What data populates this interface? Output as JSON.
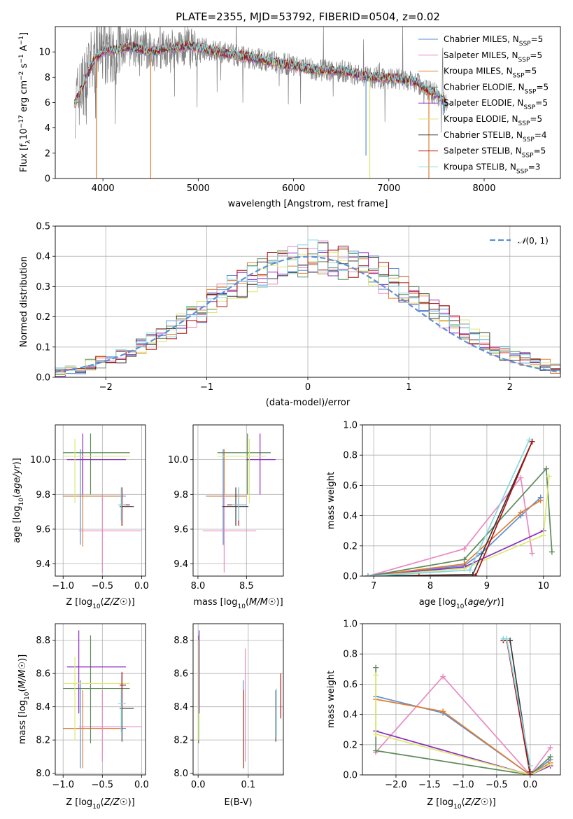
{
  "colors": {
    "chabrier_miles": "#5b8fd6",
    "salpeter_miles": "#e88ac0",
    "kroupa_miles": "#e27d2e",
    "chabrier_elodie": "#5e8a5a",
    "salpeter_elodie": "#8e2bc4",
    "kroupa_elodie": "#dcea72",
    "chabrier_stelib": "#3a3a3a",
    "salpeter_stelib": "#b01010",
    "kroupa_stelib": "#86d8e0",
    "data": "#808080",
    "normal": "#5b8fd6",
    "grid": "#b0b0b0"
  },
  "chart_data": [
    {
      "type": "line",
      "title": "PLATE=2355, MJD=53792, FIBERID=0504, z=0.02",
      "xlabel": "wavelength [Angstrom, rest frame]",
      "ylabel": "Flux [fλ10⁻¹⁷ erg cm⁻² s⁻¹ A⁻¹]",
      "xlim": [
        3500,
        8800
      ],
      "ylim": [
        0,
        12
      ],
      "xticks": [
        "4000",
        "5000",
        "6000",
        "7000",
        "8000"
      ],
      "yticks": [
        "0",
        "2",
        "4",
        "6",
        "8",
        "10"
      ],
      "legend_position": "right",
      "legend": [
        "Chabrier MILES, N_SSP=5",
        "Salpeter MILES, N_SSP=5",
        "Kroupa MILES, N_SSP=5",
        "Chabrier ELODIE, N_SSP=5",
        "Salpeter ELODIE, N_SSP=5",
        "Kroupa ELODIE, N_SSP=5",
        "Chabrier STELIB, N_SSP=4",
        "Salpeter STELIB, N_SSP=5",
        "Kroupa STELIB, N_SSP=3"
      ],
      "model_continuum": {
        "x": [
          3700,
          3800,
          3900,
          4000,
          4100,
          4300,
          4500,
          4700,
          4900,
          5200,
          5500,
          5800,
          6200,
          6500,
          6800,
          7100,
          7300,
          7400,
          7500,
          7600
        ],
        "y": [
          5.8,
          7.5,
          9.3,
          10.1,
          10.1,
          10.4,
          10.0,
          10.3,
          10.5,
          10.0,
          9.6,
          9.2,
          8.6,
          8.5,
          8.0,
          7.9,
          7.6,
          6.9,
          6.7,
          5.9
        ]
      },
      "model_dips": [
        {
          "x": 3930,
          "y": 0,
          "series": "kroupa_miles"
        },
        {
          "x": 4500,
          "y": 0,
          "series": "kroupa_miles"
        },
        {
          "x": 6760,
          "y": 1.8,
          "series": "chabrier_miles"
        },
        {
          "x": 6800,
          "y": 0,
          "series": "kroupa_elodie"
        },
        {
          "x": 7420,
          "y": 0,
          "series": "kroupa_miles"
        },
        {
          "x": 7570,
          "y": 5.0,
          "series": "chabrier_miles"
        }
      ]
    },
    {
      "type": "bar",
      "xlabel": "(data-model)/error",
      "ylabel": "Normed distribution",
      "xlim": [
        -2.5,
        2.5
      ],
      "ylim": [
        0,
        0.5
      ],
      "xticks": [
        "−2",
        "−1",
        "0",
        "1",
        "2"
      ],
      "yticks": [
        "0.0",
        "0.1",
        "0.2",
        "0.3",
        "0.4",
        "0.5"
      ],
      "legend": [
        "𝒩(0, 1)"
      ],
      "legend_position": "top-right",
      "bin_edges_start": -2.5,
      "bin_width": 0.1,
      "envelope": [
        0.02,
        0.025,
        0.03,
        0.04,
        0.05,
        0.06,
        0.07,
        0.08,
        0.1,
        0.12,
        0.14,
        0.16,
        0.18,
        0.2,
        0.22,
        0.25,
        0.27,
        0.29,
        0.31,
        0.33,
        0.35,
        0.36,
        0.37,
        0.38,
        0.39,
        0.4,
        0.4,
        0.39,
        0.38,
        0.37,
        0.36,
        0.35,
        0.33,
        0.31,
        0.29,
        0.27,
        0.25,
        0.22,
        0.2,
        0.18,
        0.16,
        0.14,
        0.12,
        0.1,
        0.08,
        0.07,
        0.06,
        0.05,
        0.04,
        0.03
      ]
    },
    {
      "type": "scatter",
      "xlabel": "Z [log₁₀(Z/Z☉)]",
      "ylabel": "age  [log₁₀(age/yr)]",
      "xlim": [
        -1.1,
        0.05
      ],
      "ylim": [
        9.33,
        10.2
      ],
      "xticks": [
        "−1.0",
        "−0.5",
        "0.0"
      ],
      "yticks": [
        "9.4",
        "9.6",
        "9.8",
        "10.0"
      ],
      "points": [
        {
          "s": "chabrier_miles",
          "x": -0.78,
          "y": 9.79,
          "xe": [
            -1.0,
            -0.2
          ],
          "ye": [
            9.51,
            10.06
          ]
        },
        {
          "s": "kroupa_miles",
          "x": -0.75,
          "y": 9.79,
          "xe": [
            -1.0,
            -0.25
          ],
          "ye": [
            9.5,
            10.06
          ]
        },
        {
          "s": "salpeter_miles",
          "x": -0.5,
          "y": 9.59,
          "xe": [
            -0.8,
            0.0
          ],
          "ye": [
            9.35,
            9.8
          ]
        },
        {
          "s": "chabrier_elodie",
          "x": -0.65,
          "y": 10.04,
          "xe": [
            -1.0,
            -0.15
          ],
          "ye": [
            9.8,
            10.15
          ]
        },
        {
          "s": "salpeter_elodie",
          "x": -0.75,
          "y": 10.0,
          "xe": [
            -0.95,
            -0.2
          ],
          "ye": [
            9.8,
            10.15
          ]
        },
        {
          "s": "kroupa_elodie",
          "x": -0.85,
          "y": 10.02,
          "xe": [
            -1.0,
            -0.15
          ],
          "ye": [
            9.75,
            10.12
          ]
        },
        {
          "s": "chabrier_stelib",
          "x": -0.25,
          "y": 9.73,
          "xe": [
            -0.28,
            -0.1
          ],
          "ye": [
            9.62,
            9.84
          ]
        },
        {
          "s": "salpeter_stelib",
          "x": -0.25,
          "y": 9.74,
          "xe": [
            -0.28,
            -0.15
          ],
          "ye": [
            9.62,
            9.84
          ]
        },
        {
          "s": "kroupa_stelib",
          "x": -0.26,
          "y": 9.74,
          "xe": [
            -0.3,
            -0.2
          ],
          "ye": [
            9.65,
            9.84
          ]
        }
      ]
    },
    {
      "type": "scatter",
      "xlabel": "mass [log₁₀(M/M☉)]",
      "ylabel": "",
      "xlim": [
        7.95,
        8.88
      ],
      "ylim": [
        9.33,
        10.2
      ],
      "xticks": [
        "8.0",
        "8.5"
      ],
      "yticks": [
        "9.4",
        "9.6",
        "9.8",
        "10.0"
      ],
      "points": [
        {
          "s": "chabrier_miles",
          "x": 8.26,
          "y": 9.79,
          "xe": [
            8.08,
            8.5
          ],
          "ye": [
            9.51,
            10.06
          ]
        },
        {
          "s": "kroupa_miles",
          "x": 8.27,
          "y": 9.79,
          "xe": [
            8.1,
            8.5
          ],
          "ye": [
            9.5,
            10.06
          ]
        },
        {
          "s": "salpeter_miles",
          "x": 8.27,
          "y": 9.59,
          "xe": [
            8.05,
            8.6
          ],
          "ye": [
            9.35,
            9.8
          ]
        },
        {
          "s": "chabrier_elodie",
          "x": 8.51,
          "y": 10.04,
          "xe": [
            8.2,
            8.75
          ],
          "ye": [
            9.8,
            10.15
          ]
        },
        {
          "s": "salpeter_elodie",
          "x": 8.64,
          "y": 10.0,
          "xe": [
            8.5,
            8.8
          ],
          "ye": [
            9.8,
            10.15
          ]
        },
        {
          "s": "kroupa_elodie",
          "x": 8.53,
          "y": 10.02,
          "xe": [
            8.2,
            8.7
          ],
          "ye": [
            9.75,
            10.12
          ]
        },
        {
          "s": "chabrier_stelib",
          "x": 8.39,
          "y": 9.73,
          "xe": [
            8.25,
            8.52
          ],
          "ye": [
            9.62,
            9.84
          ]
        },
        {
          "s": "salpeter_stelib",
          "x": 8.42,
          "y": 9.74,
          "xe": [
            8.3,
            8.5
          ],
          "ye": [
            9.62,
            9.84
          ]
        },
        {
          "s": "kroupa_stelib",
          "x": 8.42,
          "y": 9.74,
          "xe": [
            8.35,
            8.5
          ],
          "ye": [
            9.65,
            9.84
          ]
        }
      ]
    },
    {
      "type": "line",
      "xlabel": "age  [log₁₀(age/yr)]",
      "ylabel": "mass weight",
      "xlim": [
        6.8,
        10.3
      ],
      "ylim": [
        0,
        1.0
      ],
      "xticks": [
        "7",
        "8",
        "9",
        "10"
      ],
      "yticks": [
        "0.0",
        "0.2",
        "0.4",
        "0.6",
        "0.8",
        "1.0"
      ],
      "series": [
        {
          "s": "chabrier_miles",
          "x": [
            6.9,
            8.6,
            8.9,
            9.6,
            9.95
          ],
          "y": [
            0.0,
            0.07,
            0.15,
            0.4,
            0.52
          ]
        },
        {
          "s": "salpeter_miles",
          "x": [
            6.9,
            8.6,
            9.6,
            9.8
          ],
          "y": [
            0.0,
            0.18,
            0.65,
            0.15
          ]
        },
        {
          "s": "kroupa_miles",
          "x": [
            6.9,
            8.6,
            9.6,
            9.95
          ],
          "y": [
            0.0,
            0.08,
            0.42,
            0.5
          ]
        },
        {
          "s": "chabrier_elodie",
          "x": [
            6.9,
            8.6,
            10.05,
            10.15
          ],
          "y": [
            0.0,
            0.11,
            0.71,
            0.16
          ]
        },
        {
          "s": "salpeter_elodie",
          "x": [
            6.9,
            8.6,
            10.0
          ],
          "y": [
            0.0,
            0.06,
            0.3
          ]
        },
        {
          "s": "kroupa_elodie",
          "x": [
            6.9,
            8.6,
            10.0,
            10.1
          ],
          "y": [
            0.0,
            0.05,
            0.27,
            0.66
          ]
        },
        {
          "s": "chabrier_stelib",
          "x": [
            6.9,
            8.75,
            9.8
          ],
          "y": [
            0.0,
            0.01,
            0.89
          ]
        },
        {
          "s": "salpeter_stelib",
          "x": [
            7.8,
            8.8,
            9.8
          ],
          "y": [
            0.0,
            0.0,
            0.89
          ]
        },
        {
          "s": "kroupa_stelib",
          "x": [
            6.9,
            8.7,
            9.75
          ],
          "y": [
            0.0,
            0.04,
            0.9
          ]
        }
      ]
    },
    {
      "type": "scatter",
      "xlabel": "Z [log₁₀(Z/Z☉)]",
      "ylabel": "mass [log₁₀(M/M☉)]",
      "xlim": [
        -1.1,
        0.05
      ],
      "ylim": [
        7.99,
        8.9
      ],
      "xticks": [
        "−1.0",
        "−0.5",
        "0.0"
      ],
      "yticks": [
        "8.0",
        "8.2",
        "8.4",
        "8.6",
        "8.8"
      ],
      "points": [
        {
          "s": "chabrier_miles",
          "x": -0.78,
          "y": 8.27,
          "xe": [
            -1.0,
            -0.2
          ],
          "ye": [
            8.03,
            8.56
          ]
        },
        {
          "s": "kroupa_miles",
          "x": -0.75,
          "y": 8.27,
          "xe": [
            -1.0,
            -0.25
          ],
          "ye": [
            8.03,
            8.5
          ]
        },
        {
          "s": "salpeter_miles",
          "x": -0.5,
          "y": 8.28,
          "xe": [
            -0.8,
            0.0
          ],
          "ye": [
            8.07,
            8.5
          ]
        },
        {
          "s": "chabrier_elodie",
          "x": -0.65,
          "y": 8.51,
          "xe": [
            -1.0,
            -0.15
          ],
          "ye": [
            8.18,
            8.83
          ]
        },
        {
          "s": "salpeter_elodie",
          "x": -0.8,
          "y": 8.64,
          "xe": [
            -0.95,
            -0.2
          ],
          "ye": [
            8.36,
            8.86
          ]
        },
        {
          "s": "kroupa_elodie",
          "x": -0.85,
          "y": 8.54,
          "xe": [
            -1.0,
            -0.15
          ],
          "ye": [
            8.2,
            8.7
          ]
        },
        {
          "s": "chabrier_stelib",
          "x": -0.25,
          "y": 8.39,
          "xe": [
            -0.28,
            -0.1
          ],
          "ye": [
            8.19,
            8.6
          ]
        },
        {
          "s": "salpeter_stelib",
          "x": -0.25,
          "y": 8.53,
          "xe": [
            -0.28,
            -0.2
          ],
          "ye": [
            8.4,
            8.61
          ]
        },
        {
          "s": "kroupa_stelib",
          "x": -0.26,
          "y": 8.42,
          "xe": [
            -0.3,
            -0.2
          ],
          "ye": [
            8.25,
            8.5
          ]
        }
      ]
    },
    {
      "type": "scatter",
      "xlabel": "E(B-V)",
      "ylabel": "",
      "xlim": [
        -0.01,
        0.17
      ],
      "ylim": [
        7.99,
        8.9
      ],
      "xticks": [
        "0.0",
        "0.1"
      ],
      "yticks": [
        "8.0",
        "8.2",
        "8.4",
        "8.6",
        "8.8"
      ],
      "points": [
        {
          "s": "chabrier_miles",
          "x": 0.09,
          "y": 8.27,
          "xe": [
            0.09,
            0.09
          ],
          "ye": [
            8.03,
            8.56
          ]
        },
        {
          "s": "kroupa_miles",
          "x": 0.091,
          "y": 8.27,
          "xe": [
            0.091,
            0.091
          ],
          "ye": [
            8.03,
            8.5
          ]
        },
        {
          "s": "salpeter_miles",
          "x": 0.094,
          "y": 8.28,
          "xe": [
            0.094,
            0.094
          ],
          "ye": [
            8.07,
            8.75
          ]
        },
        {
          "s": "chabrier_elodie",
          "x": 0.001,
          "y": 8.51,
          "xe": [
            0.001,
            0.001
          ],
          "ye": [
            8.18,
            8.83
          ]
        },
        {
          "s": "salpeter_elodie",
          "x": 0.002,
          "y": 8.64,
          "xe": [
            0.002,
            0.002
          ],
          "ye": [
            8.36,
            8.86
          ]
        },
        {
          "s": "kroupa_elodie",
          "x": 0.0,
          "y": 8.54,
          "xe": [
            0.0,
            0.0
          ],
          "ye": [
            8.2,
            8.8
          ]
        },
        {
          "s": "chabrier_stelib",
          "x": 0.155,
          "y": 8.39,
          "xe": [
            0.155,
            0.155
          ],
          "ye": [
            8.19,
            8.5
          ]
        },
        {
          "s": "salpeter_stelib",
          "x": 0.165,
          "y": 8.47,
          "xe": [
            0.165,
            0.165
          ],
          "ye": [
            8.33,
            8.6
          ]
        },
        {
          "s": "kroupa_stelib",
          "x": 0.156,
          "y": 8.4,
          "xe": [
            0.156,
            0.156
          ],
          "ye": [
            8.22,
            8.51
          ]
        }
      ]
    },
    {
      "type": "line",
      "xlabel": "Z [log₁₀(Z/Z☉)]",
      "ylabel": "mass weight",
      "xlim": [
        -2.5,
        0.45
      ],
      "ylim": [
        0,
        1.0
      ],
      "xticks": [
        "−2.0",
        "−1.5",
        "−1.0",
        "−0.5",
        "0.0"
      ],
      "yticks": [
        "0.0",
        "0.2",
        "0.4",
        "0.6",
        "0.8",
        "1.0"
      ],
      "series": [
        {
          "s": "chabrier_miles",
          "x": [
            -2.3,
            -1.3,
            0.0,
            0.3
          ],
          "y": [
            0.52,
            0.41,
            0.0,
            0.1
          ]
        },
        {
          "s": "salpeter_miles",
          "x": [
            -2.3,
            -1.3,
            0.0,
            0.3
          ],
          "y": [
            0.15,
            0.65,
            0.0,
            0.18
          ]
        },
        {
          "s": "kroupa_miles",
          "x": [
            -2.3,
            -1.3,
            0.0,
            0.3
          ],
          "y": [
            0.5,
            0.42,
            0.0,
            0.08
          ]
        },
        {
          "s": "chabrier_elodie",
          "x": [
            -2.3,
            -2.3,
            0.0,
            0.3
          ],
          "y": [
            0.71,
            0.16,
            0.0,
            0.12
          ]
        },
        {
          "s": "salpeter_elodie",
          "x": [
            -2.3,
            0.0,
            0.3
          ],
          "y": [
            0.29,
            0.0,
            0.06
          ]
        },
        {
          "s": "kroupa_elodie",
          "x": [
            -2.3,
            -2.3,
            0.0,
            0.3
          ],
          "y": [
            0.66,
            0.27,
            0.0,
            0.07
          ]
        },
        {
          "s": "chabrier_stelib",
          "x": [
            -0.4,
            -0.3,
            0.0
          ],
          "y": [
            0.89,
            0.89,
            0.02
          ]
        },
        {
          "s": "salpeter_stelib",
          "x": [
            -0.4,
            -0.35,
            0.0
          ],
          "y": [
            0.89,
            0.89,
            0.0
          ]
        },
        {
          "s": "kroupa_stelib",
          "x": [
            -0.4,
            -0.35,
            0.0
          ],
          "y": [
            0.9,
            0.9,
            0.06
          ]
        }
      ]
    }
  ]
}
